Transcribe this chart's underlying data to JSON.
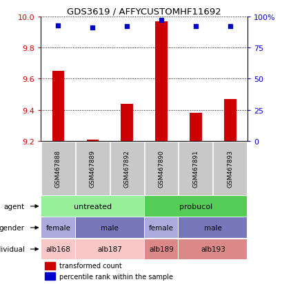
{
  "title": "GDS3619 / AFFYCUSTOMHF11692",
  "samples": [
    "GSM467888",
    "GSM467889",
    "GSM467892",
    "GSM467890",
    "GSM467891",
    "GSM467893"
  ],
  "red_values": [
    9.65,
    9.21,
    9.44,
    9.97,
    9.38,
    9.47
  ],
  "blue_values": [
    93,
    91,
    92,
    97,
    92,
    92
  ],
  "ylim_left": [
    9.2,
    10.0
  ],
  "ylim_right": [
    0,
    100
  ],
  "yticks_left": [
    9.2,
    9.4,
    9.6,
    9.8,
    10.0
  ],
  "yticks_right": [
    0,
    25,
    50,
    75,
    100
  ],
  "bar_color": "#CC0000",
  "dot_color": "#0000CC",
  "grid_color": "#888888",
  "axis_color_left": "#CC0000",
  "axis_color_right": "#0000CC",
  "sample_bg_color": "#C8C8C8",
  "untreated_color": "#99EE99",
  "probucol_color": "#55CC55",
  "female_color": "#AAAADD",
  "male_color": "#7777BB",
  "alb168_color": "#F8C8C8",
  "alb187_color": "#F8C8C8",
  "alb189_color": "#DD8888",
  "alb193_color": "#DD8888",
  "legend_red": "transformed count",
  "legend_blue": "percentile rank within the sample"
}
